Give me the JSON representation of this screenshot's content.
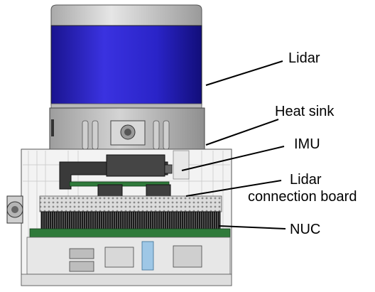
{
  "labels": {
    "lidar": "Lidar",
    "heat_sink": "Heat sink",
    "imu": "IMU",
    "lidar_connection_board_line1": "Lidar",
    "lidar_connection_board_line2": "connection board",
    "nuc": "NUC"
  },
  "colors": {
    "lidar_body": "#2a24c8",
    "lidar_top": "#cfcfcf",
    "heat_sink": "#bdbdbd",
    "enclosure": "#f2f2f2",
    "pcb_green": "#2f7a3a",
    "line": "#000000"
  }
}
